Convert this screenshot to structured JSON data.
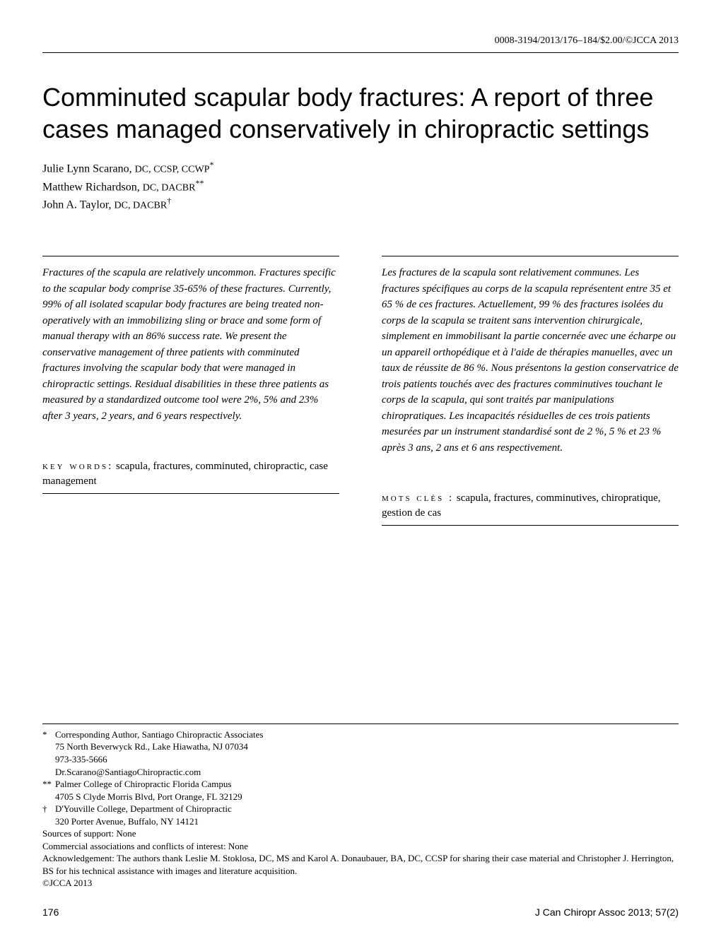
{
  "header": {
    "top_right": "0008-3194/2013/176–184/$2.00/©JCCA 2013"
  },
  "title": "Comminuted scapular body fractures: A report of three cases managed conservatively in chiropractic settings",
  "authors": [
    {
      "name": "Julie Lynn Scarano",
      "credentials": "DC, CCSP, CCWP",
      "marker": "*"
    },
    {
      "name": "Matthew Richardson",
      "credentials": "DC, DACBR",
      "marker": "**"
    },
    {
      "name": "John A. Taylor",
      "credentials": "DC, DACBR",
      "marker": "†"
    }
  ],
  "abstract_en": "Fractures of the scapula are relatively uncommon. Fractures specific to the scapular body comprise 35-65% of these fractures. Currently, 99% of all isolated scapular body fractures are being treated non-operatively with an immobilizing sling or brace and some form of manual therapy with an 86% success rate. We present the conservative management of three patients with comminuted fractures involving the scapular body that were managed in chiropractic settings. Residual disabilities in these three patients as measured by a standardized outcome tool were 2%, 5% and 23% after 3 years, 2 years, and 6 years respectively.",
  "keywords_en_label": "key words:",
  "keywords_en": "scapula, fractures, comminuted, chiropractic, case management",
  "abstract_fr": "Les fractures de la scapula sont relativement communes. Les fractures spécifiques au corps de la scapula représentent entre 35 et 65 % de ces fractures. Actuellement, 99 % des fractures isolées du corps de la scapula se traitent sans intervention chirurgicale, simplement en immobilisant la partie concernée avec une écharpe ou un appareil orthopédique et à l'aide de thérapies manuelles, avec un taux de réussite de 86 %. Nous présentons la gestion conservatrice de trois patients touchés avec des fractures comminutives touchant le corps de la scapula, qui sont traités par manipulations chiropratiques. Les incapacités résiduelles de ces trois patients mesurées par un instrument standardisé sont de 2 %, 5 % et 23 % après 3 ans, 2 ans et 6 ans respectivement.",
  "keywords_fr_label": "mots clés :",
  "keywords_fr": "scapula, fractures, comminutives, chiropratique, gestion de cas",
  "footnotes": {
    "f1_marker": "*",
    "f1_line1": "Corresponding Author, Santiago Chiropractic Associates",
    "f1_line2": "75 North Beverwyck Rd., Lake Hiawatha, NJ 07034",
    "f1_line3": "973-335-5666",
    "f1_line4": "Dr.Scarano@SantiagoChiropractic.com",
    "f2_marker": "**",
    "f2_line1": "Palmer College of Chiropractic Florida Campus",
    "f2_line2": "4705 S Clyde Morris Blvd, Port Orange, FL 32129",
    "f3_marker": "†",
    "f3_line1": "D'Youville College, Department of Chiropractic",
    "f3_line2": "320 Porter Avenue, Buffalo, NY 14121",
    "support": "Sources of support: None",
    "conflicts": "Commercial associations and conflicts of interest: None",
    "ack": "Acknowledgement: The authors thank Leslie M. Stoklosa, DC, MS and Karol A. Donaubauer, BA, DC, CCSP for sharing their case material and Christopher J. Herrington, BS for his technical assistance with images and literature acquisition.",
    "copyright": "©JCCA 2013"
  },
  "footer": {
    "page": "176",
    "journal": "J Can Chiropr Assoc 2013; 57(2)"
  }
}
